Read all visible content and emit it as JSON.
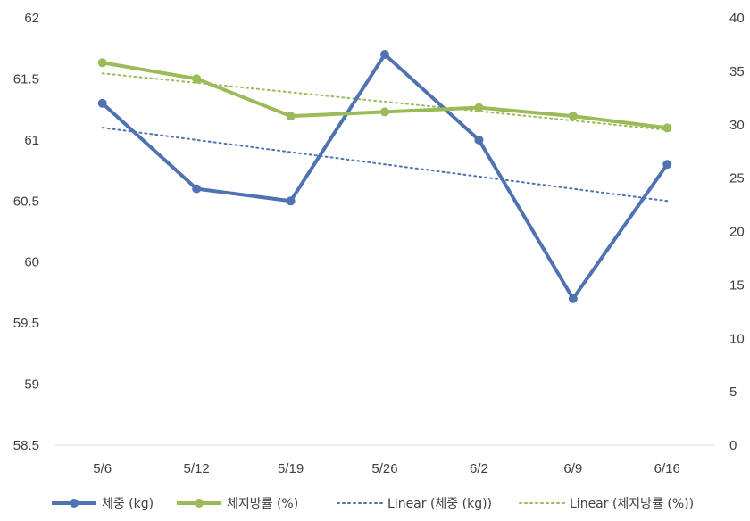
{
  "chart_data": {
    "type": "line",
    "categories": [
      "5/6",
      "5/12",
      "5/19",
      "5/26",
      "6/2",
      "6/9",
      "6/16"
    ],
    "y_left": {
      "min": 58.5,
      "max": 62,
      "step": 0.5,
      "ticks": [
        "58.5",
        "59",
        "59.5",
        "60",
        "60.5",
        "61",
        "61.5",
        "62"
      ]
    },
    "y_right": {
      "min": 0,
      "max": 40,
      "step": 5,
      "ticks": [
        "0",
        "5",
        "10",
        "15",
        "20",
        "25",
        "30",
        "35",
        "40"
      ]
    },
    "grid": false,
    "legend_position": "bottom",
    "series": [
      {
        "name": "체중 (kg)",
        "axis": "left",
        "color": "#4F73B0",
        "values": [
          61.3,
          60.6,
          60.5,
          61.7,
          61.0,
          59.7,
          60.8
        ]
      },
      {
        "name": "체지방률 (%)",
        "axis": "right",
        "color": "#9BBB59",
        "values": [
          35.8,
          34.3,
          30.8,
          31.2,
          31.6,
          30.8,
          29.7
        ]
      }
    ],
    "trendlines": [
      {
        "name": "Linear (체중 (kg))",
        "axis": "left",
        "color": "#4F73B0",
        "start": 61.1,
        "end": 60.5
      },
      {
        "name": "Linear (체지방률 (%))",
        "axis": "right",
        "color": "#9BBB59",
        "start": 34.8,
        "end": 29.5
      }
    ]
  }
}
